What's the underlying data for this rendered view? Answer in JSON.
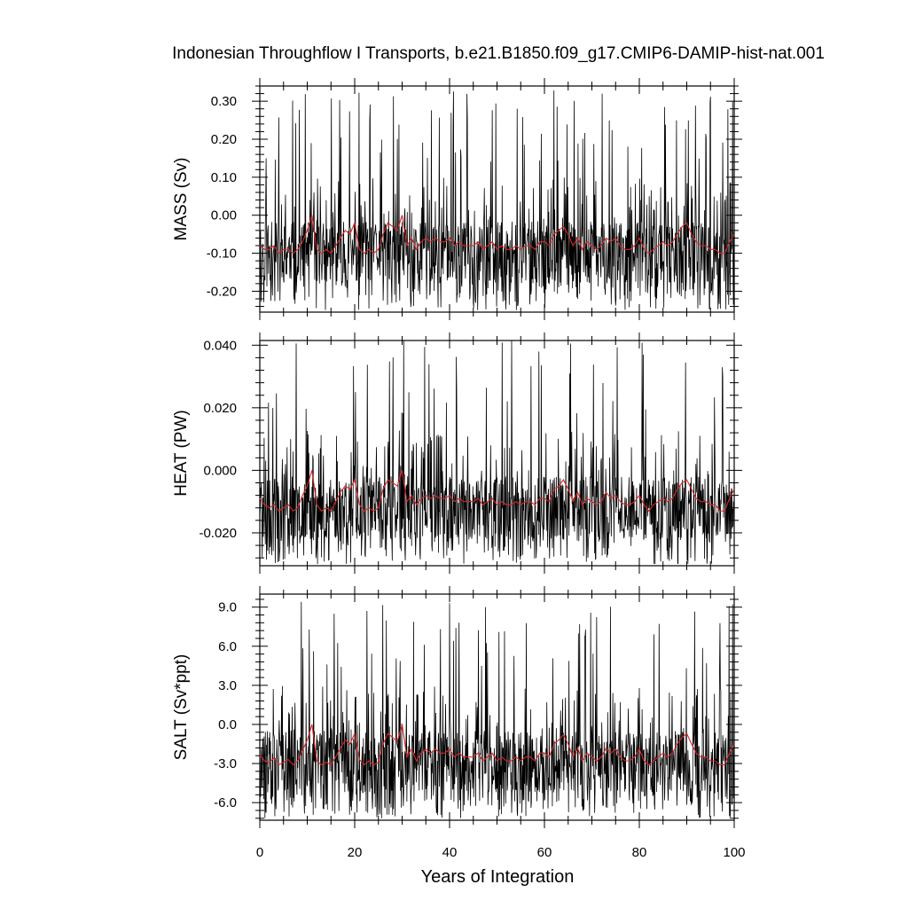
{
  "title": "Indonesian Throughflow I Transports, b.e21.B1850.f09_g17.CMIP6-DAMIP-hist-nat.001",
  "xlabel": "Years of Integration",
  "x_ticks": [
    "0",
    "20",
    "40",
    "60",
    "80",
    "100"
  ],
  "colors": {
    "monthly": "#000000",
    "annual_mean": "#d62728"
  },
  "chart_data": [
    {
      "type": "line",
      "ylabel": "MASS (Sv)",
      "xlim": [
        0,
        100
      ],
      "ylim": [
        -0.255,
        0.34
      ],
      "y_ticks": [
        "0.30",
        "0.20",
        "0.10",
        "0.00",
        "-0.10",
        "-0.20"
      ],
      "y_tick_values": [
        0.3,
        0.2,
        0.1,
        0.0,
        -0.1,
        -0.2
      ],
      "monthly": {
        "samples_per_year": 12,
        "mean": -0.09,
        "min": -0.25,
        "max": 0.33
      },
      "annual_mean": {
        "x": [
          0,
          1,
          2,
          3,
          4,
          5,
          6,
          7,
          8,
          9,
          10,
          11,
          12,
          13,
          14,
          15,
          16,
          17,
          18,
          19,
          20,
          21,
          22,
          23,
          24,
          25,
          26,
          27,
          28,
          29,
          30,
          31,
          32,
          33,
          34,
          35,
          36,
          37,
          38,
          39,
          40,
          41,
          42,
          43,
          44,
          45,
          46,
          47,
          48,
          49,
          50,
          51,
          52,
          53,
          54,
          55,
          56,
          57,
          58,
          59,
          60,
          61,
          62,
          63,
          64,
          65,
          66,
          67,
          68,
          69,
          70,
          71,
          72,
          73,
          74,
          75,
          76,
          77,
          78,
          79,
          80,
          81,
          82,
          83,
          84,
          85,
          86,
          87,
          88,
          89,
          90,
          91,
          92,
          93,
          94,
          95,
          96,
          97,
          98,
          99,
          100
        ],
        "y": [
          -0.08,
          -0.09,
          -0.09,
          -0.08,
          -0.1,
          -0.09,
          -0.09,
          -0.1,
          -0.09,
          -0.07,
          -0.04,
          0.0,
          -0.09,
          -0.1,
          -0.09,
          -0.1,
          -0.08,
          -0.06,
          -0.04,
          -0.05,
          -0.02,
          -0.09,
          -0.1,
          -0.09,
          -0.1,
          -0.09,
          -0.05,
          -0.02,
          -0.03,
          -0.04,
          0.0,
          -0.08,
          -0.06,
          -0.09,
          -0.07,
          -0.06,
          -0.07,
          -0.06,
          -0.07,
          -0.07,
          -0.06,
          -0.08,
          -0.07,
          -0.08,
          -0.08,
          -0.08,
          -0.07,
          -0.09,
          -0.08,
          -0.07,
          -0.09,
          -0.08,
          -0.09,
          -0.09,
          -0.08,
          -0.09,
          -0.08,
          -0.08,
          -0.09,
          -0.07,
          -0.07,
          -0.08,
          -0.05,
          -0.04,
          -0.03,
          -0.05,
          -0.08,
          -0.06,
          -0.09,
          -0.07,
          -0.08,
          -0.09,
          -0.08,
          -0.06,
          -0.07,
          -0.06,
          -0.08,
          -0.09,
          -0.09,
          -0.08,
          -0.06,
          -0.09,
          -0.1,
          -0.09,
          -0.08,
          -0.07,
          -0.08,
          -0.07,
          -0.05,
          -0.03,
          -0.02,
          -0.05,
          -0.07,
          -0.08,
          -0.08,
          -0.09,
          -0.09,
          -0.1,
          -0.1,
          -0.07,
          -0.05
        ]
      }
    },
    {
      "type": "line",
      "ylabel": "HEAT (PW)",
      "xlim": [
        0,
        100
      ],
      "ylim": [
        -0.0305,
        0.0415
      ],
      "y_ticks": [
        "0.040",
        "0.020",
        "0.000",
        "-0.020"
      ],
      "y_tick_values": [
        0.04,
        0.02,
        0.0,
        -0.02
      ],
      "monthly": {
        "samples_per_year": 12,
        "mean": -0.011,
        "min": -0.03,
        "max": 0.042
      },
      "annual_mean": {
        "x": [
          0,
          1,
          2,
          3,
          4,
          5,
          6,
          7,
          8,
          9,
          10,
          11,
          12,
          13,
          14,
          15,
          16,
          17,
          18,
          19,
          20,
          21,
          22,
          23,
          24,
          25,
          26,
          27,
          28,
          29,
          30,
          31,
          32,
          33,
          34,
          35,
          36,
          37,
          38,
          39,
          40,
          41,
          42,
          43,
          44,
          45,
          46,
          47,
          48,
          49,
          50,
          51,
          52,
          53,
          54,
          55,
          56,
          57,
          58,
          59,
          60,
          61,
          62,
          63,
          64,
          65,
          66,
          67,
          68,
          69,
          70,
          71,
          72,
          73,
          74,
          75,
          76,
          77,
          78,
          79,
          80,
          81,
          82,
          83,
          84,
          85,
          86,
          87,
          88,
          89,
          90,
          91,
          92,
          93,
          94,
          95,
          96,
          97,
          98,
          99,
          100
        ],
        "y": [
          -0.009,
          -0.011,
          -0.012,
          -0.011,
          -0.013,
          -0.012,
          -0.011,
          -0.013,
          -0.012,
          -0.008,
          -0.005,
          0.0,
          -0.011,
          -0.013,
          -0.012,
          -0.013,
          -0.01,
          -0.007,
          -0.005,
          -0.006,
          -0.003,
          -0.011,
          -0.013,
          -0.012,
          -0.013,
          -0.012,
          -0.006,
          -0.003,
          -0.004,
          -0.005,
          0.0,
          -0.01,
          -0.008,
          -0.011,
          -0.009,
          -0.008,
          -0.009,
          -0.008,
          -0.009,
          -0.009,
          -0.008,
          -0.01,
          -0.009,
          -0.01,
          -0.01,
          -0.01,
          -0.009,
          -0.011,
          -0.01,
          -0.009,
          -0.011,
          -0.01,
          -0.011,
          -0.011,
          -0.01,
          -0.011,
          -0.01,
          -0.01,
          -0.011,
          -0.009,
          -0.009,
          -0.01,
          -0.006,
          -0.005,
          -0.003,
          -0.006,
          -0.01,
          -0.007,
          -0.011,
          -0.009,
          -0.01,
          -0.011,
          -0.01,
          -0.007,
          -0.009,
          -0.008,
          -0.01,
          -0.011,
          -0.011,
          -0.01,
          -0.008,
          -0.011,
          -0.013,
          -0.011,
          -0.01,
          -0.009,
          -0.01,
          -0.009,
          -0.006,
          -0.004,
          -0.003,
          -0.006,
          -0.009,
          -0.01,
          -0.01,
          -0.011,
          -0.011,
          -0.013,
          -0.013,
          -0.009,
          -0.006
        ]
      }
    },
    {
      "type": "line",
      "ylabel": "SALT (Sv*ppt)",
      "xlim": [
        0,
        100
      ],
      "ylim": [
        -7.35,
        10.0
      ],
      "y_ticks": [
        "9.0",
        "6.0",
        "3.0",
        "0.0",
        "-3.0",
        "-6.0"
      ],
      "y_tick_values": [
        9.0,
        6.0,
        3.0,
        0.0,
        -3.0,
        -6.0
      ],
      "monthly": {
        "samples_per_year": 12,
        "mean": -2.6,
        "min": -7.2,
        "max": 9.8
      },
      "annual_mean": {
        "x": [
          0,
          1,
          2,
          3,
          4,
          5,
          6,
          7,
          8,
          9,
          10,
          11,
          12,
          13,
          14,
          15,
          16,
          17,
          18,
          19,
          20,
          21,
          22,
          23,
          24,
          25,
          26,
          27,
          28,
          29,
          30,
          31,
          32,
          33,
          34,
          35,
          36,
          37,
          38,
          39,
          40,
          41,
          42,
          43,
          44,
          45,
          46,
          47,
          48,
          49,
          50,
          51,
          52,
          53,
          54,
          55,
          56,
          57,
          58,
          59,
          60,
          61,
          62,
          63,
          64,
          65,
          66,
          67,
          68,
          69,
          70,
          71,
          72,
          73,
          74,
          75,
          76,
          77,
          78,
          79,
          80,
          81,
          82,
          83,
          84,
          85,
          86,
          87,
          88,
          89,
          90,
          91,
          92,
          93,
          94,
          95,
          96,
          97,
          98,
          99,
          100
        ],
        "y": [
          -2.3,
          -2.8,
          -2.9,
          -2.6,
          -3.1,
          -2.9,
          -2.7,
          -3.1,
          -2.8,
          -2.0,
          -1.2,
          0.0,
          -2.8,
          -3.1,
          -2.9,
          -3.1,
          -2.5,
          -1.8,
          -1.2,
          -1.5,
          -0.7,
          -2.7,
          -3.1,
          -2.8,
          -3.1,
          -2.9,
          -1.5,
          -0.7,
          -1.0,
          -1.3,
          0.0,
          -2.5,
          -1.9,
          -2.8,
          -2.2,
          -1.9,
          -2.2,
          -1.9,
          -2.2,
          -2.2,
          -1.9,
          -2.5,
          -2.2,
          -2.5,
          -2.5,
          -2.5,
          -2.2,
          -2.8,
          -2.5,
          -2.2,
          -2.8,
          -2.5,
          -2.8,
          -2.8,
          -2.5,
          -2.8,
          -2.5,
          -2.5,
          -2.8,
          -2.2,
          -2.2,
          -2.5,
          -1.5,
          -1.2,
          -0.8,
          -1.5,
          -2.5,
          -1.8,
          -2.8,
          -2.2,
          -2.5,
          -2.8,
          -2.5,
          -1.8,
          -2.2,
          -1.9,
          -2.5,
          -2.8,
          -2.8,
          -2.5,
          -1.9,
          -2.8,
          -3.1,
          -2.8,
          -2.5,
          -2.2,
          -2.5,
          -2.2,
          -1.5,
          -1.0,
          -0.7,
          -1.5,
          -2.2,
          -2.5,
          -2.5,
          -2.8,
          -2.8,
          -3.1,
          -3.1,
          -2.2,
          -1.5
        ]
      }
    }
  ]
}
